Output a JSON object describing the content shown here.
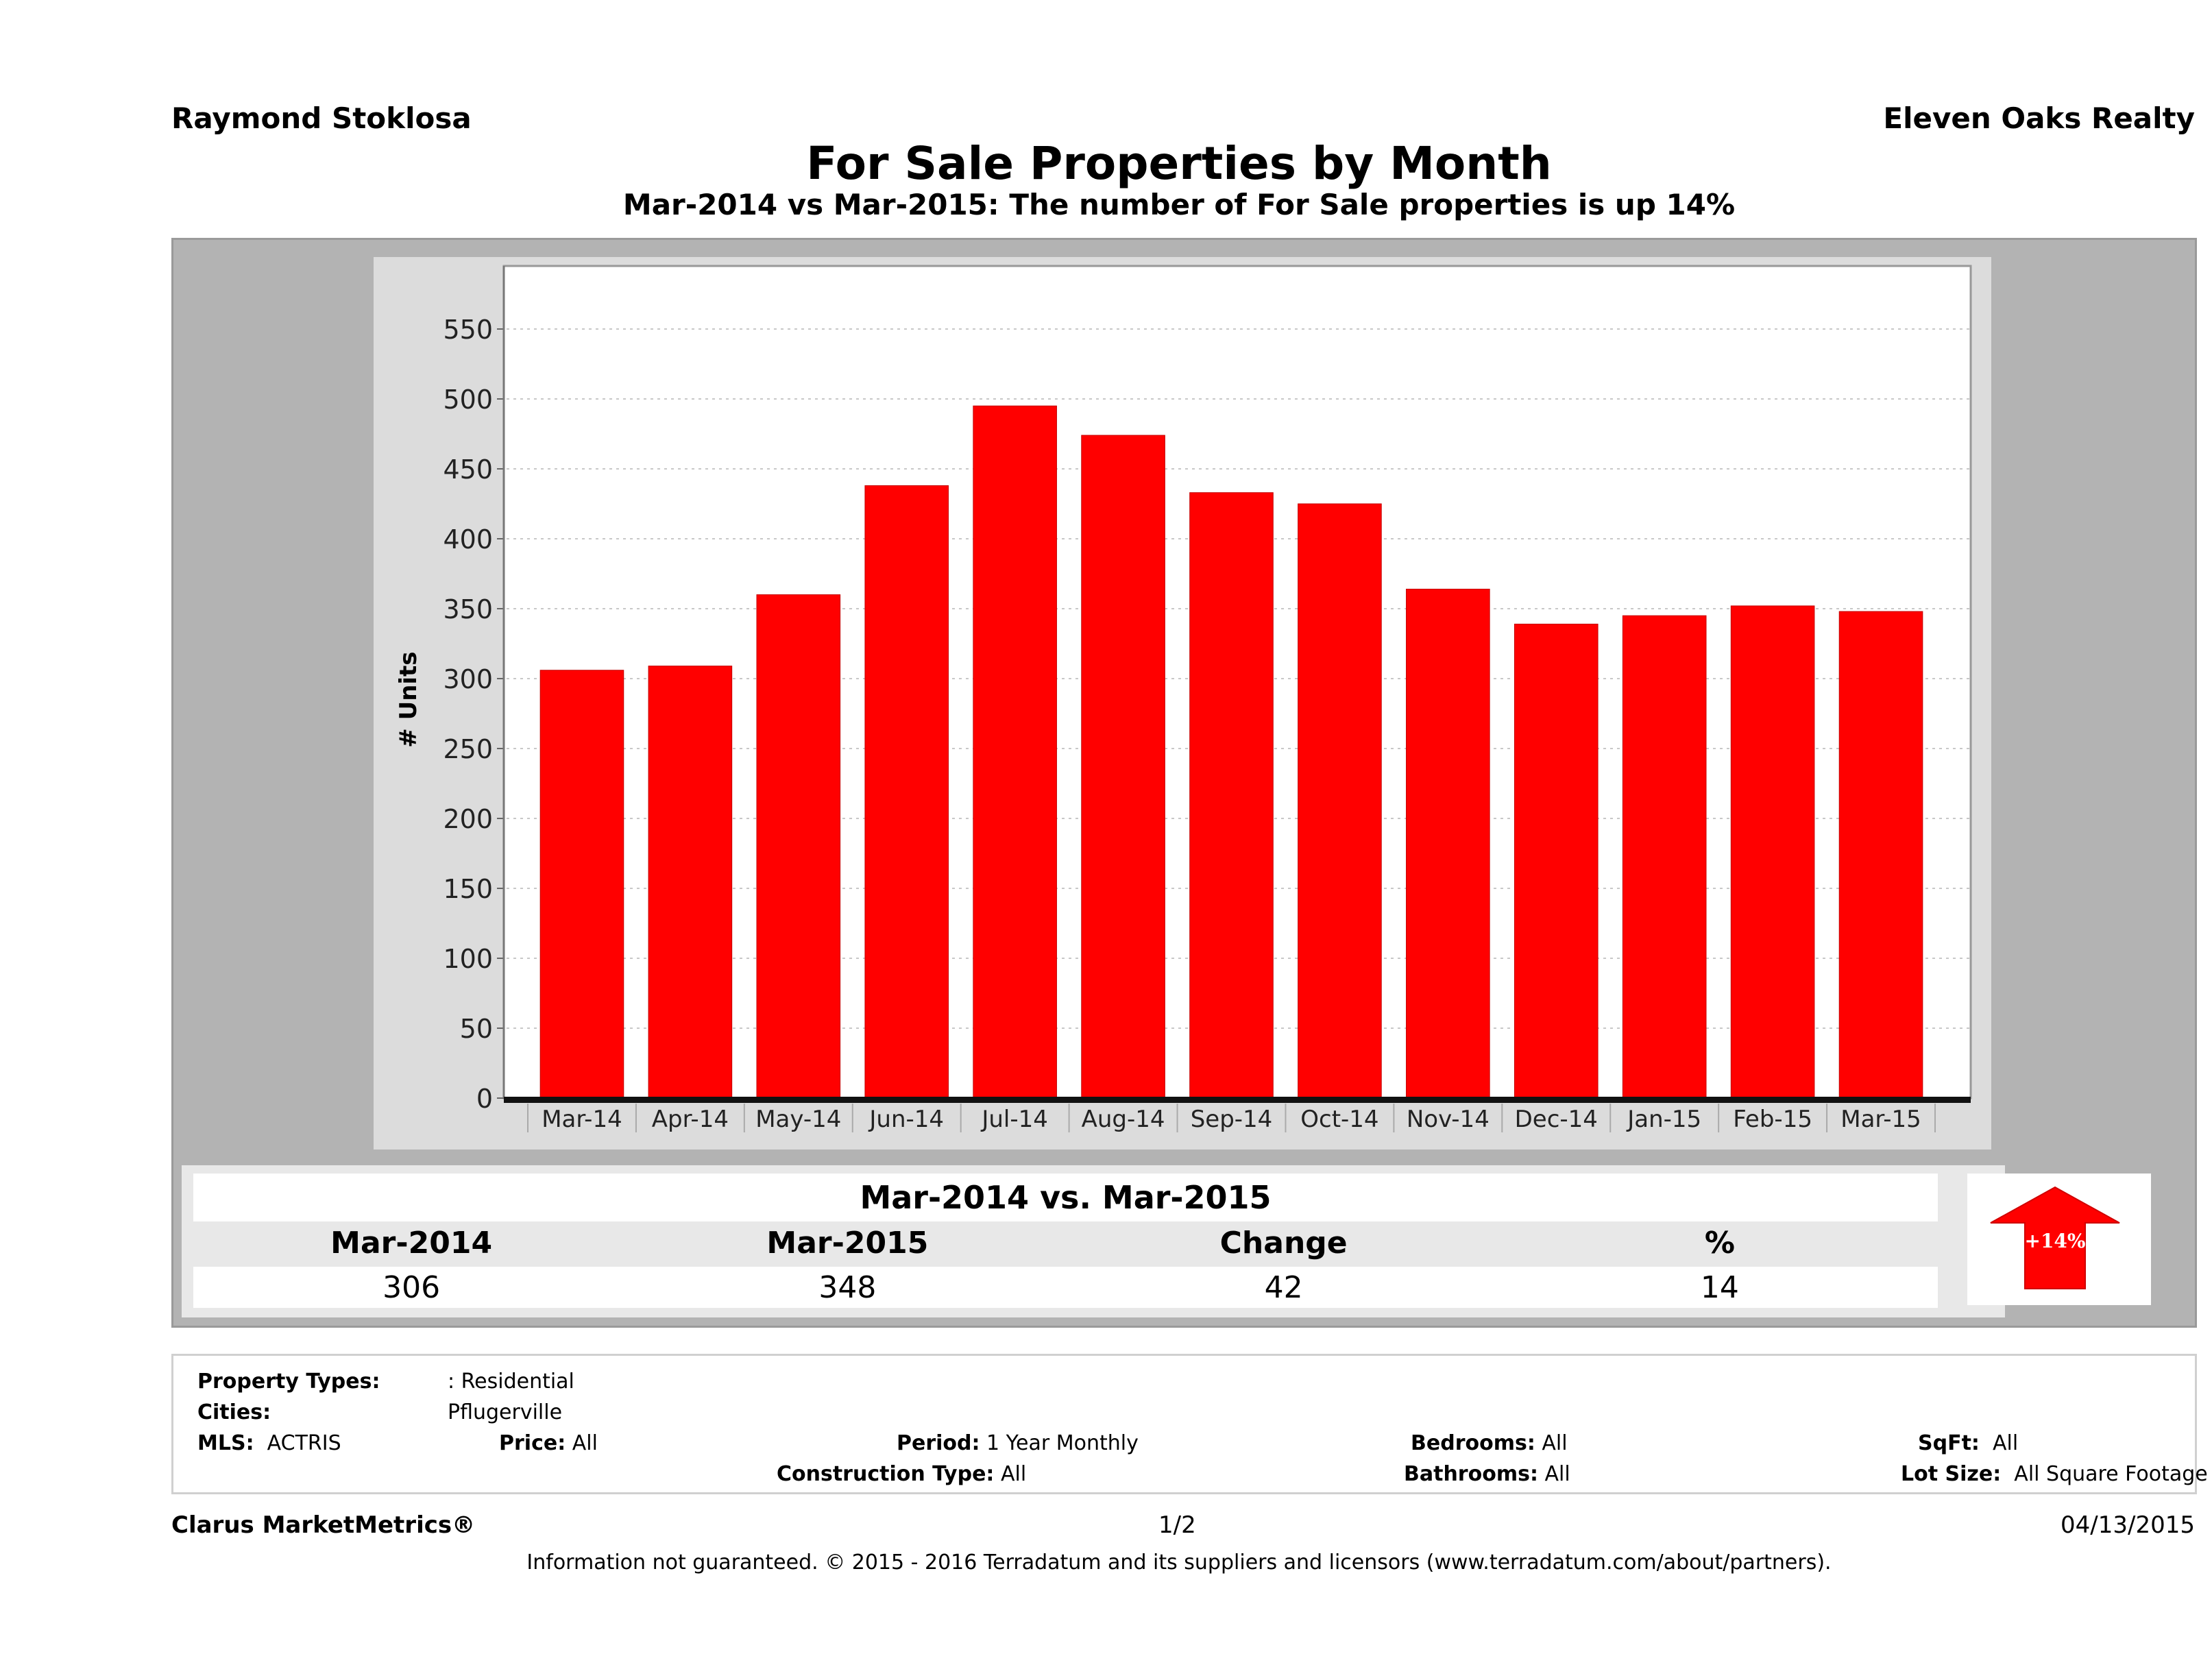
{
  "header": {
    "agent_name": "Raymond Stoklosa",
    "company_name": "Eleven Oaks Realty",
    "title": "For Sale Properties by Month",
    "subtitle": "Mar-2014 vs Mar-2015: The number of For Sale  properties is up 14%"
  },
  "chart_data": {
    "type": "bar",
    "title": "For Sale Properties by Month",
    "xlabel": "",
    "ylabel": "# Units",
    "ylim": [
      0,
      590
    ],
    "yticks": [
      0,
      50,
      100,
      150,
      200,
      250,
      300,
      350,
      400,
      450,
      500,
      550
    ],
    "grid": true,
    "legend": "none",
    "bar_color": "#ff0000",
    "categories": [
      "Mar-14",
      "Apr-14",
      "May-14",
      "Jun-14",
      "Jul-14",
      "Aug-14",
      "Sep-14",
      "Oct-14",
      "Nov-14",
      "Dec-14",
      "Jan-15",
      "Feb-15",
      "Mar-15"
    ],
    "values": [
      306,
      309,
      360,
      438,
      495,
      474,
      433,
      425,
      364,
      339,
      345,
      352,
      348
    ]
  },
  "summary": {
    "heading": "Mar-2014 vs. Mar-2015",
    "columns": [
      "Mar-2014",
      "Mar-2015",
      "Change",
      "%"
    ],
    "values": [
      "306",
      "348",
      "42",
      "14"
    ],
    "badge": {
      "icon": "up-arrow-icon",
      "label": "+14%",
      "color": "#ff0000"
    }
  },
  "criteria": {
    "property_types_label": "Property Types:",
    "property_types_value": ": Residential",
    "cities_label": "Cities:",
    "cities_value": "Pflugerville",
    "mls_label": "MLS:",
    "mls_value": "ACTRIS",
    "price_label": "Price:",
    "price_value": "All",
    "period_label": "Period:",
    "period_value": "1 Year Monthly",
    "construction_label": "Construction Type:",
    "construction_value": "All",
    "bedrooms_label": "Bedrooms:",
    "bedrooms_value": "All",
    "bathrooms_label": "Bathrooms:",
    "bathrooms_value": "All",
    "sqft_label": "SqFt:",
    "sqft_value": "All",
    "lot_label": "Lot Size:",
    "lot_value": "All Square Footage"
  },
  "footer": {
    "brand": "Clarus MarketMetrics®",
    "page": "1/2",
    "date": "04/13/2015",
    "disclaimer": "Information not guaranteed. © 2015 - 2016 Terradatum and its suppliers and licensors (www.terradatum.com/about/partners)."
  }
}
